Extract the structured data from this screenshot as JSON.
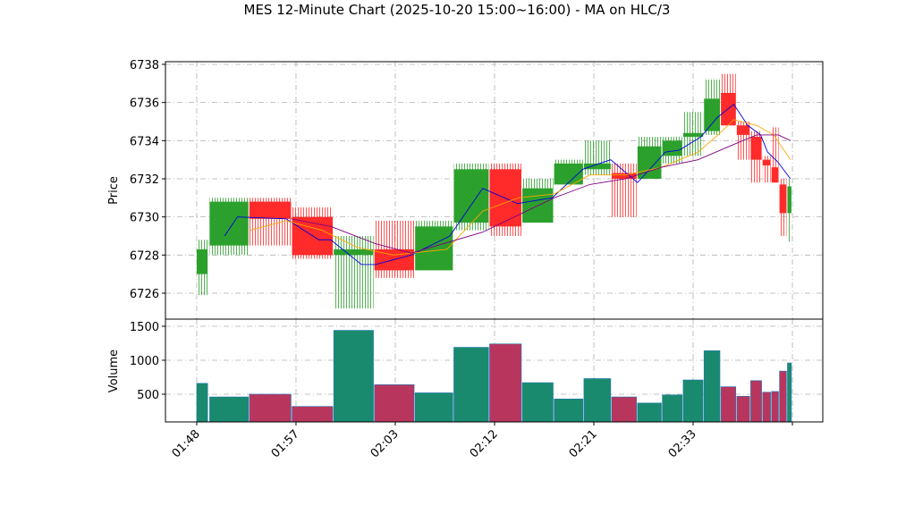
{
  "chart_data": {
    "type": "candlestick",
    "title": "MES 12-Minute Chart (2025-10-20 15:00~16:00) - MA on HLC/3",
    "ylabel": "Price",
    "volume_ylabel": "Volume",
    "xlim": [
      -3.15,
      63.06
    ],
    "xticks": [
      {
        "value": 0,
        "label": "01:48"
      },
      {
        "value": 10,
        "label": "01:57"
      },
      {
        "value": 20,
        "label": "02:03"
      },
      {
        "value": 30,
        "label": "02:12"
      },
      {
        "value": 40,
        "label": "02:21"
      },
      {
        "value": 50,
        "label": "02:33"
      },
      {
        "value": 60,
        "label": null
      }
    ],
    "ylim": [
      6724.64,
      6738.14
    ],
    "yticks": [
      6726,
      6728,
      6730,
      6732,
      6734,
      6736,
      6738
    ],
    "volume_ylim": [
      92,
      1605
    ],
    "volume_yticks": [
      500,
      1000,
      1500
    ],
    "grid": true,
    "up_color": "#2ca02c",
    "down_color": "#ff2a2a",
    "volume_up_color": "#1a8a6e",
    "volume_down_color": "#b8365e",
    "candles": [
      {
        "x0": 0,
        "x1": 1.1,
        "open": 6727,
        "high": 6728.8,
        "low": 6725.9,
        "close": 6728.3,
        "volume": 660
      },
      {
        "x0": 1.3,
        "x1": 5.2,
        "open": 6728.5,
        "high": 6731,
        "low": 6728,
        "close": 6730.8,
        "volume": 460
      },
      {
        "x0": 5.3,
        "x1": 9.5,
        "open": 6730.8,
        "high": 6731,
        "low": 6728.5,
        "close": 6729.9,
        "volume": 500
      },
      {
        "x0": 9.6,
        "x1": 13.7,
        "open": 6730,
        "high": 6730.5,
        "low": 6727.8,
        "close": 6728,
        "volume": 320
      },
      {
        "x0": 13.8,
        "x1": 17.8,
        "open": 6728,
        "high": 6729,
        "low": 6725.2,
        "close": 6728.3,
        "volume": 1440
      },
      {
        "x0": 17.9,
        "x1": 21.9,
        "open": 6728.3,
        "high": 6729.8,
        "low": 6726.8,
        "close": 6727.2,
        "volume": 640
      },
      {
        "x0": 22.0,
        "x1": 25.8,
        "open": 6727.2,
        "high": 6729.8,
        "low": 6727.2,
        "close": 6729.5,
        "volume": 520
      },
      {
        "x0": 25.9,
        "x1": 29.4,
        "open": 6729.7,
        "high": 6732.8,
        "low": 6729.3,
        "close": 6732.5,
        "volume": 1190
      },
      {
        "x0": 29.5,
        "x1": 32.7,
        "open": 6732.5,
        "high": 6732.8,
        "low": 6729,
        "close": 6729.5,
        "volume": 1240
      },
      {
        "x0": 32.8,
        "x1": 35.9,
        "open": 6729.7,
        "high": 6732,
        "low": 6729.7,
        "close": 6731.5,
        "volume": 670
      },
      {
        "x0": 36.0,
        "x1": 38.9,
        "open": 6731.7,
        "high": 6733,
        "low": 6731.7,
        "close": 6732.8,
        "volume": 430
      },
      {
        "x0": 39.0,
        "x1": 41.7,
        "open": 6732.5,
        "high": 6734,
        "low": 6732.2,
        "close": 6732.8,
        "volume": 730
      },
      {
        "x0": 41.8,
        "x1": 44.3,
        "open": 6732.3,
        "high": 6732.8,
        "low": 6730,
        "close": 6732,
        "volume": 460
      },
      {
        "x0": 44.4,
        "x1": 46.8,
        "open": 6732,
        "high": 6734.2,
        "low": 6732,
        "close": 6733.7,
        "volume": 370
      },
      {
        "x0": 46.9,
        "x1": 48.9,
        "open": 6733.2,
        "high": 6734.2,
        "low": 6732.8,
        "close": 6734,
        "volume": 490
      },
      {
        "x0": 49.0,
        "x1": 51.0,
        "open": 6734.2,
        "high": 6735.5,
        "low": 6733.2,
        "close": 6734.4,
        "volume": 710
      },
      {
        "x0": 51.1,
        "x1": 52.7,
        "open": 6734.5,
        "high": 6737.2,
        "low": 6734.3,
        "close": 6736.2,
        "volume": 1140
      },
      {
        "x0": 52.8,
        "x1": 54.3,
        "open": 6736.5,
        "high": 6737.5,
        "low": 6734.8,
        "close": 6734.8,
        "volume": 610
      },
      {
        "x0": 54.4,
        "x1": 55.7,
        "open": 6734.8,
        "high": 6735,
        "low": 6733,
        "close": 6734.3,
        "volume": 470
      },
      {
        "x0": 55.8,
        "x1": 56.9,
        "open": 6734.2,
        "high": 6734.5,
        "low": 6731.8,
        "close": 6733,
        "volume": 700
      },
      {
        "x0": 57.0,
        "x1": 57.8,
        "open": 6733,
        "high": 6733.2,
        "low": 6731.8,
        "close": 6732.7,
        "volume": 530
      },
      {
        "x0": 57.9,
        "x1": 58.6,
        "open": 6732.6,
        "high": 6734.7,
        "low": 6731.8,
        "close": 6731.8,
        "volume": 540
      },
      {
        "x0": 58.7,
        "x1": 59.4,
        "open": 6731.7,
        "high": 6732,
        "low": 6729,
        "close": 6730.2,
        "volume": 840
      },
      {
        "x0": 59.5,
        "x1": 59.9,
        "open": 6730.2,
        "high": 6732,
        "low": 6728.7,
        "close": 6731.6,
        "volume": 960
      }
    ],
    "series": [
      {
        "color": "#0000dd",
        "x": [
          2.8,
          4.1,
          9.0,
          12.3,
          13.5,
          16.6,
          18.0,
          21.6,
          25.5,
          28.8,
          32.3,
          35.8,
          38.9,
          41.7,
          44.4,
          47.2,
          48.6,
          50.8,
          52.4,
          54.1,
          55.5,
          56.8,
          57.5,
          58.5,
          59.8
        ],
        "values": [
          6729,
          6730,
          6729.9,
          6728.8,
          6728.8,
          6727.5,
          6727.5,
          6728,
          6729,
          6731.5,
          6730.7,
          6731,
          6732.5,
          6733,
          6731.8,
          6733.4,
          6733.5,
          6734.2,
          6735.2,
          6735.9,
          6734.8,
          6734.3,
          6733.4,
          6732.9,
          6732
        ]
      },
      {
        "color": "#ffa500",
        "x": [
          5.4,
          9.0,
          12.6,
          16.2,
          19.8,
          25.2,
          28.8,
          32.4,
          36.0,
          39.6,
          43.2,
          46.8,
          50.5,
          52.3,
          54.1,
          56.4,
          58.1,
          59.8
        ],
        "values": [
          6729.3,
          6729.8,
          6729.3,
          6728.4,
          6728,
          6728.3,
          6730.3,
          6731,
          6731.2,
          6732.2,
          6732.2,
          6732.6,
          6733.4,
          6734.2,
          6735.1,
          6734.8,
          6734.3,
          6733
        ]
      },
      {
        "color": "#800080",
        "x": [
          9.5,
          13.5,
          18.0,
          21.6,
          28.8,
          36.0,
          39.6,
          43.2,
          46.8,
          50.5,
          54.1,
          56.4,
          58.6,
          59.8
        ],
        "values": [
          6729.9,
          6729.5,
          6728.6,
          6728.1,
          6729.2,
          6731,
          6731.7,
          6732,
          6732.6,
          6733,
          6733.8,
          6734.3,
          6734.3,
          6734
        ]
      }
    ]
  }
}
